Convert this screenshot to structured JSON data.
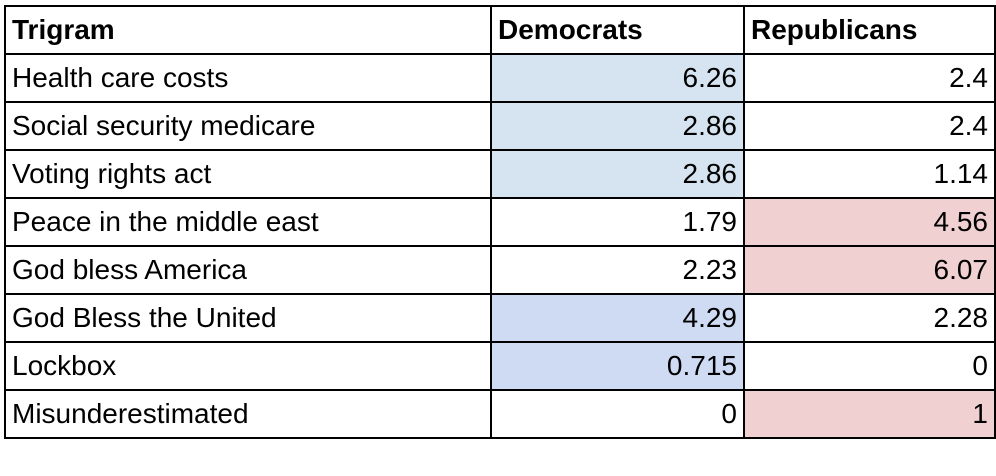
{
  "table": {
    "headers": [
      "Trigram",
      "Democrats",
      "Republicans"
    ],
    "rows": [
      {
        "trigram": "Health care costs",
        "democrats": "6.26",
        "republicans": "2.4",
        "dem_bg": "#d5e4f0",
        "rep_bg": "#ffffff"
      },
      {
        "trigram": "Social security medicare",
        "democrats": "2.86",
        "republicans": "2.4",
        "dem_bg": "#d5e4f0",
        "rep_bg": "#ffffff"
      },
      {
        "trigram": "Voting rights act",
        "democrats": "2.86",
        "republicans": "1.14",
        "dem_bg": "#d5e4f0",
        "rep_bg": "#ffffff"
      },
      {
        "trigram": "Peace in the middle east",
        "democrats": "1.79",
        "republicans": "4.56",
        "dem_bg": "#ffffff",
        "rep_bg": "#f0d0d0"
      },
      {
        "trigram": "God bless America",
        "democrats": "2.23",
        "republicans": "6.07",
        "dem_bg": "#ffffff",
        "rep_bg": "#f0d0d0"
      },
      {
        "trigram": "God Bless the United",
        "democrats": "4.29",
        "republicans": "2.28",
        "dem_bg": "#cfdaf3",
        "rep_bg": "#ffffff"
      },
      {
        "trigram": "Lockbox",
        "democrats": "0.715",
        "republicans": "0",
        "dem_bg": "#cfdaf3",
        "rep_bg": "#ffffff"
      },
      {
        "trigram": "Misunderestimated",
        "democrats": "0",
        "republicans": "1",
        "dem_bg": "#ffffff",
        "rep_bg": "#f0d0d0"
      }
    ]
  }
}
